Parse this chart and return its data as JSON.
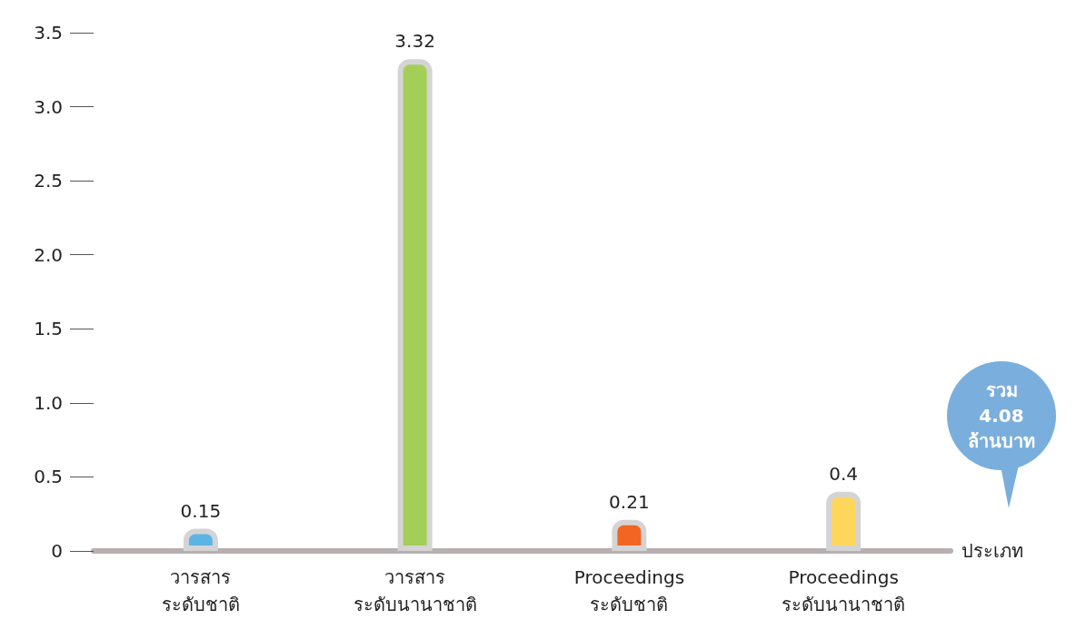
{
  "chart_data": {
    "type": "bar",
    "xlabel": "ประเภท",
    "categories": [
      "วารสาร\nระดับชาติ",
      "วารสาร\nระดับนานาชาติ",
      "Proceedings\nระดับชาติ",
      "Proceedings\nระดับนานาชาติ"
    ],
    "values": [
      0.15,
      3.32,
      0.21,
      0.4
    ],
    "colors": [
      "#5bb4e5",
      "#a3cf58",
      "#f26522",
      "#ffd65c"
    ],
    "ylim": [
      0,
      3.5
    ],
    "yticks": [
      0,
      0.5,
      {
        "value": 1,
        "label": "1.0"
      },
      1.5,
      {
        "value": 2,
        "label": "2.0"
      },
      2.5,
      {
        "value": 3,
        "label": "3.0"
      },
      3.5
    ],
    "data_labels": true,
    "grid": false,
    "annotations": [
      "รวม\n4.08\nล้านบาท"
    ]
  }
}
